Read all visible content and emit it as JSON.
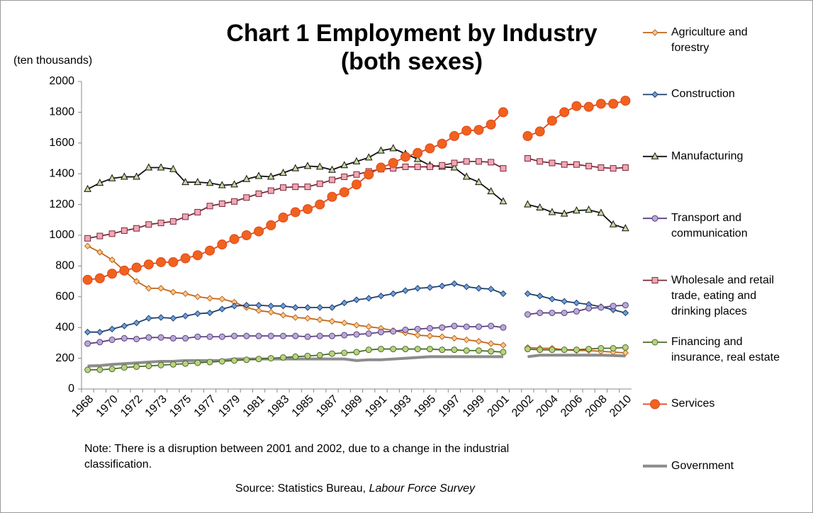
{
  "chart_data": {
    "type": "line",
    "title": [
      "Chart 1 Employment by Industry",
      "(both sexes)"
    ],
    "y_label": "(ten thousands)",
    "note": "Note: There is a disruption between 2001 and 2002, due to a change in the industrial classification.",
    "source": {
      "text": "Source: Statistics Bureau,",
      "publication": "Labour Force Survey"
    },
    "categories": [
      "1968",
      null,
      "1970",
      null,
      "1972",
      null,
      "1973",
      null,
      "1975",
      null,
      "1977",
      null,
      "1979",
      null,
      "1981",
      null,
      "1983",
      null,
      "1985",
      null,
      "1987",
      null,
      "1989",
      null,
      "1991",
      null,
      "1993",
      null,
      "1995",
      null,
      "1997",
      null,
      "1999",
      null,
      "2001",
      null,
      "2002",
      null,
      "2004",
      null,
      "2006",
      null,
      "2008",
      null,
      "2010"
    ],
    "ylim": [
      0,
      2000
    ],
    "yticks": [
      0,
      200,
      400,
      600,
      800,
      1000,
      1200,
      1400,
      1600,
      1800,
      2000
    ],
    "series": [
      {
        "name": "Government",
        "color": "#8c8c8c",
        "marker": "none",
        "marker_fill": "#8c8c8c",
        "values": [
          150,
          152,
          160,
          165,
          170,
          175,
          180,
          180,
          185,
          185,
          185,
          185,
          195,
          195,
          195,
          195,
          195,
          195,
          195,
          195,
          195,
          195,
          185,
          190,
          190,
          195,
          200,
          205,
          210,
          210,
          210,
          210,
          210,
          210,
          210,
          null,
          210,
          220,
          220,
          220,
          220,
          220,
          220,
          218,
          215
        ]
      },
      {
        "name": "Agriculture and forestry",
        "color": "#c0651a",
        "marker": "diamond",
        "marker_fill": "#f7c98a",
        "values": [
          930,
          890,
          840,
          770,
          700,
          655,
          655,
          630,
          620,
          600,
          590,
          585,
          565,
          530,
          510,
          500,
          480,
          465,
          460,
          450,
          440,
          430,
          415,
          405,
          395,
          380,
          365,
          350,
          345,
          340,
          330,
          320,
          310,
          295,
          285,
          null,
          270,
          265,
          265,
          255,
          250,
          250,
          245,
          240,
          235
        ]
      },
      {
        "name": "Construction",
        "color": "#1f3f6e",
        "marker": "diamond",
        "marker_fill": "#6f9fd8",
        "values": [
          370,
          370,
          390,
          410,
          430,
          460,
          465,
          460,
          475,
          490,
          495,
          520,
          540,
          545,
          545,
          540,
          540,
          530,
          530,
          530,
          530,
          560,
          580,
          590,
          605,
          620,
          640,
          655,
          660,
          670,
          685,
          665,
          655,
          650,
          620,
          null,
          620,
          605,
          585,
          570,
          560,
          550,
          535,
          515,
          495
        ]
      },
      {
        "name": "Manufacturing",
        "color": "#111111",
        "marker": "triangle",
        "marker_fill": "#c6d9a0",
        "values": [
          1300,
          1340,
          1370,
          1380,
          1380,
          1440,
          1440,
          1430,
          1345,
          1345,
          1340,
          1325,
          1330,
          1365,
          1385,
          1380,
          1405,
          1435,
          1450,
          1445,
          1425,
          1455,
          1480,
          1505,
          1550,
          1565,
          1530,
          1495,
          1455,
          1445,
          1440,
          1380,
          1345,
          1285,
          1220,
          null,
          1200,
          1180,
          1150,
          1140,
          1160,
          1165,
          1145,
          1070,
          1045
        ]
      },
      {
        "name": "Transport and communication",
        "color": "#5b3f7f",
        "marker": "circle",
        "marker_fill": "#b9a9d6",
        "values": [
          295,
          305,
          320,
          330,
          325,
          335,
          335,
          330,
          330,
          340,
          340,
          340,
          345,
          345,
          345,
          345,
          345,
          345,
          340,
          345,
          345,
          350,
          355,
          360,
          370,
          375,
          385,
          390,
          395,
          400,
          410,
          405,
          405,
          410,
          400,
          null,
          485,
          495,
          495,
          495,
          505,
          525,
          530,
          540,
          545
        ]
      },
      {
        "name": "Wholesale and retail trade, eating and drinking places",
        "color": "#7a2a3c",
        "marker": "square",
        "marker_fill": "#f0a8b4",
        "values": [
          980,
          995,
          1010,
          1030,
          1045,
          1070,
          1080,
          1090,
          1120,
          1150,
          1190,
          1205,
          1220,
          1245,
          1270,
          1290,
          1310,
          1315,
          1315,
          1335,
          1360,
          1380,
          1395,
          1415,
          1430,
          1435,
          1445,
          1445,
          1445,
          1455,
          1470,
          1480,
          1480,
          1475,
          1435,
          null,
          1500,
          1480,
          1470,
          1460,
          1460,
          1450,
          1440,
          1435,
          1440
        ]
      },
      {
        "name": "Financing and insurance, real estate",
        "color": "#4d6b2a",
        "marker": "circle",
        "marker_fill": "#b9d37f",
        "values": [
          125,
          125,
          130,
          140,
          145,
          150,
          155,
          160,
          165,
          170,
          175,
          180,
          185,
          190,
          195,
          200,
          205,
          210,
          215,
          220,
          230,
          235,
          240,
          255,
          260,
          260,
          260,
          260,
          260,
          255,
          255,
          250,
          250,
          245,
          240,
          null,
          260,
          255,
          255,
          255,
          255,
          260,
          265,
          265,
          270
        ]
      },
      {
        "name": "Services",
        "color": "#e0461a",
        "marker": "bigcircle",
        "marker_fill": "#f0621e",
        "values": [
          710,
          720,
          750,
          770,
          790,
          810,
          825,
          825,
          850,
          870,
          900,
          940,
          975,
          1000,
          1025,
          1065,
          1115,
          1150,
          1170,
          1200,
          1250,
          1280,
          1330,
          1395,
          1440,
          1470,
          1510,
          1535,
          1565,
          1595,
          1645,
          1680,
          1685,
          1720,
          1800,
          null,
          1645,
          1675,
          1745,
          1800,
          1840,
          1835,
          1855,
          1855,
          1875
        ]
      }
    ],
    "legend_order": [
      1,
      2,
      3,
      4,
      5,
      6,
      7,
      0
    ]
  }
}
